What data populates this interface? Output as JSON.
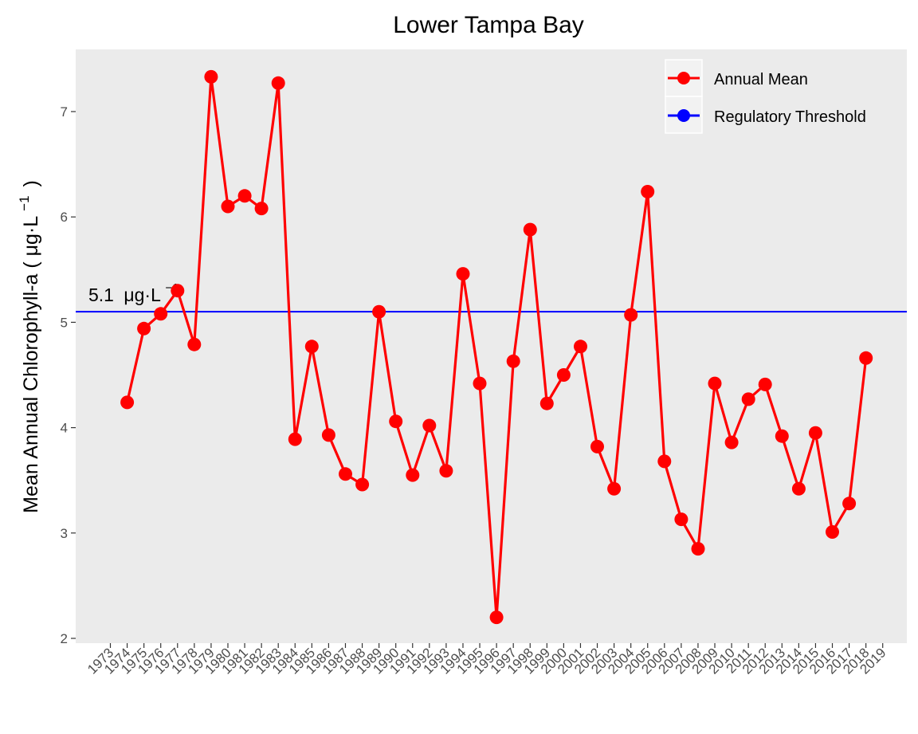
{
  "chart_data": {
    "type": "line",
    "title": "Lower Tampa Bay",
    "xlabel": "",
    "ylabel": "Mean Annual Chlorophyll-a ( μg·L",
    "ylabel_exponent": "−1",
    "ylabel_close": ")",
    "ylim": [
      2,
      7.5
    ],
    "yticks": [
      2,
      3,
      4,
      5,
      6,
      7
    ],
    "categories": [
      "1973",
      "1974",
      "1975",
      "1976",
      "1977",
      "1978",
      "1979",
      "1980",
      "1981",
      "1982",
      "1983",
      "1984",
      "1985",
      "1986",
      "1987",
      "1988",
      "1989",
      "1990",
      "1991",
      "1992",
      "1993",
      "1994",
      "1995",
      "1996",
      "1997",
      "1998",
      "1999",
      "2000",
      "2001",
      "2002",
      "2003",
      "2004",
      "2005",
      "2006",
      "2007",
      "2008",
      "2009",
      "2010",
      "2011",
      "2012",
      "2013",
      "2014",
      "2015",
      "2016",
      "2017",
      "2018",
      "2019"
    ],
    "series": [
      {
        "name": "Annual Mean",
        "color": "#ff0000",
        "x": [
          "1974",
          "1975",
          "1976",
          "1977",
          "1978",
          "1979",
          "1980",
          "1981",
          "1982",
          "1983",
          "1984",
          "1985",
          "1986",
          "1987",
          "1988",
          "1989",
          "1990",
          "1991",
          "1992",
          "1993",
          "1994",
          "1995",
          "1996",
          "1997",
          "1998",
          "1999",
          "2000",
          "2001",
          "2002",
          "2003",
          "2004",
          "2005",
          "2006",
          "2007",
          "2008",
          "2009",
          "2010",
          "2011",
          "2012",
          "2013",
          "2014",
          "2015",
          "2016",
          "2017",
          "2018"
        ],
        "values": [
          4.24,
          4.94,
          5.08,
          5.3,
          4.79,
          7.33,
          6.1,
          6.2,
          6.08,
          7.27,
          3.89,
          4.77,
          3.93,
          3.56,
          3.46,
          5.1,
          4.06,
          3.55,
          4.02,
          3.59,
          5.46,
          4.42,
          2.2,
          4.63,
          5.88,
          4.23,
          4.5,
          4.77,
          3.82,
          3.42,
          5.07,
          6.24,
          3.68,
          3.13,
          2.85,
          4.42,
          3.86,
          4.27,
          4.41,
          3.92,
          3.42,
          3.95,
          3.01,
          3.28,
          4.66
        ]
      }
    ],
    "threshold": {
      "name": "Regulatory Threshold",
      "value": 5.1,
      "color": "#0000ff",
      "label_value": "5.1",
      "label_unit": "μg·L",
      "label_exponent": "−1"
    },
    "legend": {
      "position": "top-right",
      "entries": [
        "Annual Mean",
        "Regulatory Threshold"
      ]
    },
    "grid": false,
    "panel_background": "#ebebeb"
  }
}
